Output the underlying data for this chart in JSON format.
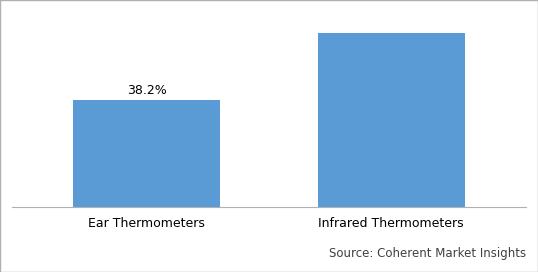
{
  "categories": [
    "Ear Thermometers",
    "Infrared Thermometers"
  ],
  "values": [
    38.2,
    61.8
  ],
  "bar_color": "#5b9bd5",
  "label_first_bar": "38.2%",
  "source_text": "Source: Coherent Market Insights",
  "ylim": [
    0,
    70
  ],
  "bar_width": 0.6,
  "label_fontsize": 9,
  "tick_fontsize": 9,
  "source_fontsize": 8.5,
  "background_color": "#ffffff",
  "figsize": [
    5.38,
    2.72
  ],
  "dpi": 100
}
